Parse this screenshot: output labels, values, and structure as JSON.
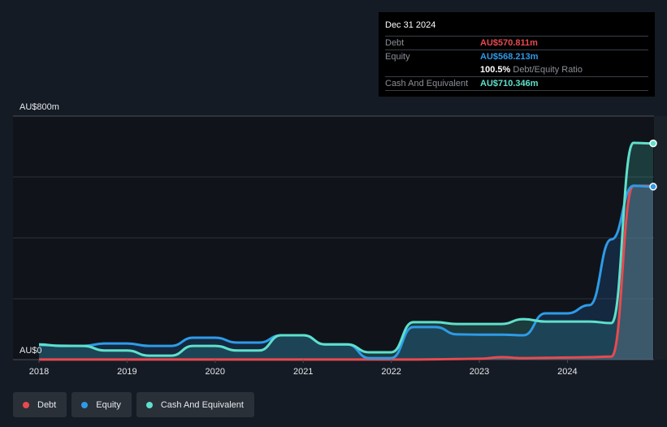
{
  "tooltip": {
    "date": "Dec 31 2024",
    "rows": [
      {
        "label": "Debt",
        "value": "AU$570.811m",
        "color": "#e84a4f"
      },
      {
        "label": "Equity",
        "value": "AU$568.213m",
        "color": "#2e9be8"
      },
      {
        "ratio_value": "100.5%",
        "ratio_label": "Debt/Equity Ratio"
      },
      {
        "label": "Cash And Equivalent",
        "value": "AU$710.346m",
        "color": "#5ee0cb"
      }
    ]
  },
  "legend": [
    {
      "label": "Debt",
      "color": "#e84a4f"
    },
    {
      "label": "Equity",
      "color": "#2e9be8"
    },
    {
      "label": "Cash And Equivalent",
      "color": "#5ee0cb"
    }
  ],
  "chart_data": {
    "type": "area",
    "title": "",
    "xlabel": "",
    "ylabel": "",
    "y_tick_labels": [
      "AU$0",
      "AU$800m"
    ],
    "ylim": [
      0,
      800
    ],
    "x_tick_labels": [
      "2018",
      "2019",
      "2020",
      "2021",
      "2022",
      "2023",
      "2024"
    ],
    "grid": true,
    "legend_position": "bottom-left",
    "x": [
      2018.0,
      2018.25,
      2018.5,
      2018.75,
      2019.0,
      2019.25,
      2019.5,
      2019.75,
      2020.0,
      2020.25,
      2020.5,
      2020.75,
      2021.0,
      2021.25,
      2021.5,
      2021.75,
      2022.0,
      2022.25,
      2022.5,
      2022.75,
      2023.0,
      2023.25,
      2023.5,
      2023.75,
      2024.0,
      2024.25,
      2024.5,
      2024.75,
      2024.99
    ],
    "series": [
      {
        "name": "Debt",
        "color": "#e84a4f",
        "values": [
          0.5,
          0.5,
          0.5,
          0.5,
          0.5,
          0.5,
          0.5,
          0.5,
          0.5,
          0.5,
          0.5,
          0.5,
          0.5,
          0.5,
          0.5,
          0.5,
          0.5,
          0.5,
          1,
          2,
          3,
          8,
          5,
          6,
          7,
          8,
          10,
          571,
          570.8
        ]
      },
      {
        "name": "Equity",
        "color": "#2e9be8",
        "values": [
          48,
          46,
          45,
          53,
          53,
          45,
          45,
          72,
          72,
          56,
          56,
          80,
          80,
          50,
          50,
          5,
          5,
          107,
          107,
          83,
          82,
          82,
          80,
          152,
          152,
          179,
          395,
          571,
          568.2
        ]
      },
      {
        "name": "Cash And Equivalent",
        "color": "#5ee0cb",
        "values": [
          50,
          45,
          45,
          30,
          30,
          13,
          13,
          45,
          45,
          30,
          30,
          80,
          80,
          50,
          50,
          24,
          24,
          123,
          123,
          117,
          117,
          117,
          133,
          125,
          125,
          125,
          120,
          712,
          710.3
        ]
      }
    ]
  }
}
